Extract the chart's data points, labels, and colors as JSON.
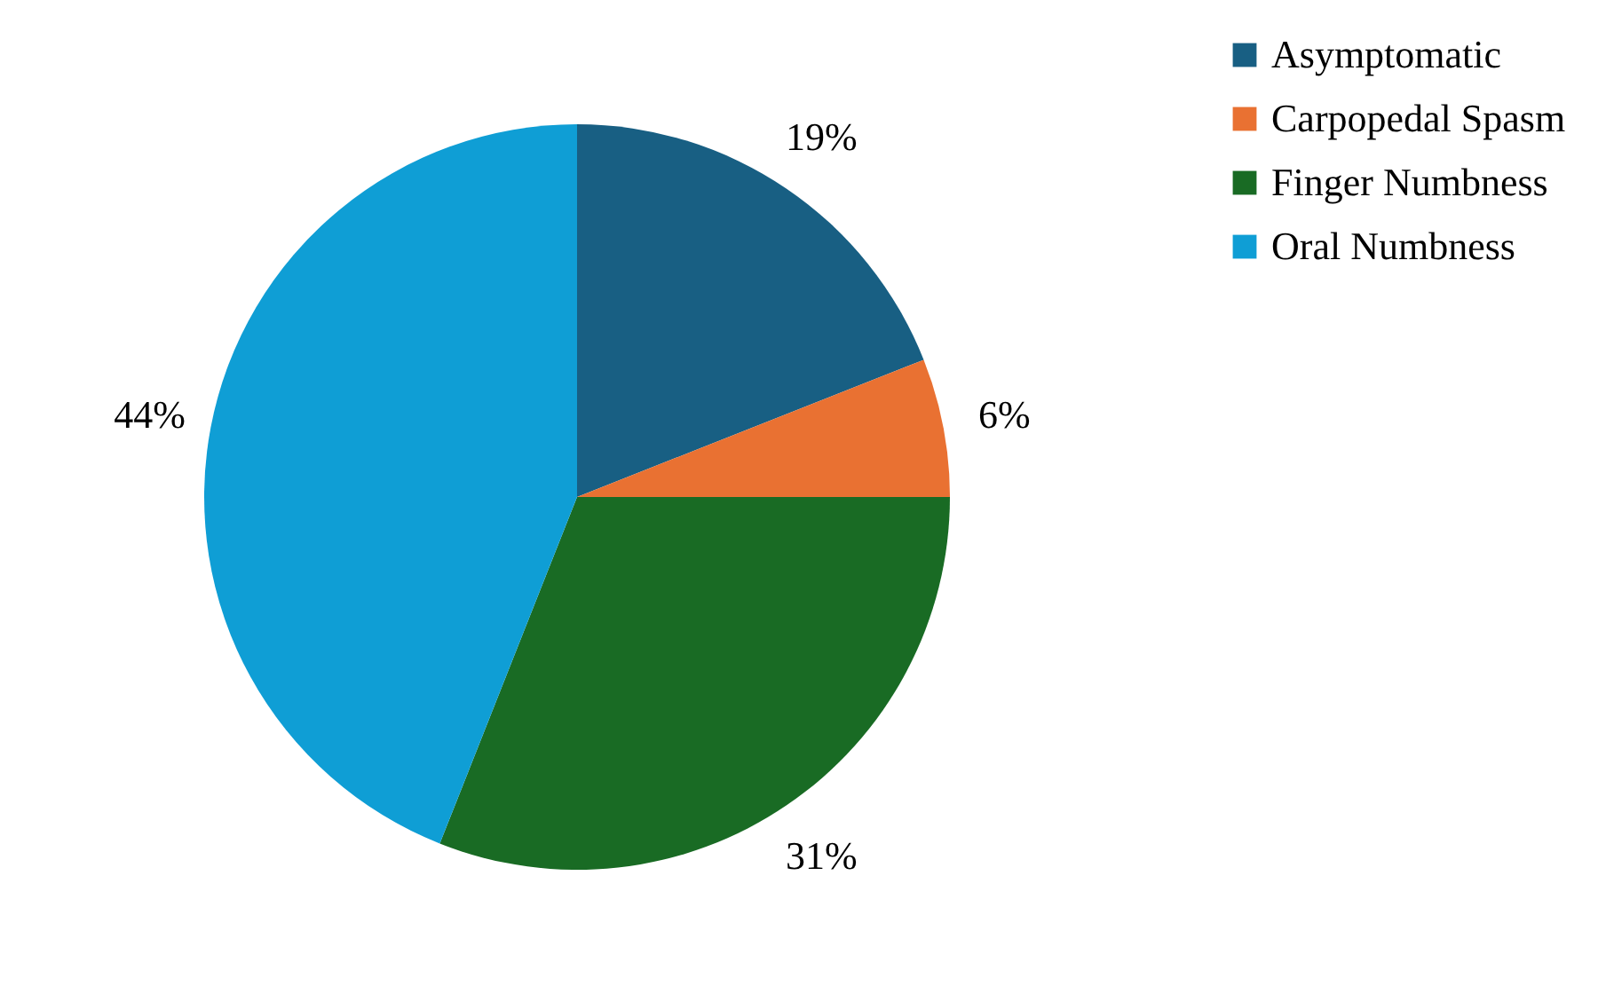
{
  "chart_data": {
    "type": "pie",
    "categories": [
      "Asymptomatic",
      "Carpopedal Spasm",
      "Finger Numbness",
      "Oral Numbness"
    ],
    "values": [
      19,
      6,
      31,
      44
    ],
    "colors": [
      "#185f83",
      "#e97132",
      "#196b24",
      "#0f9ed5"
    ],
    "value_labels": [
      "19%",
      "6%",
      "31%",
      "44%"
    ],
    "legend": "right"
  }
}
